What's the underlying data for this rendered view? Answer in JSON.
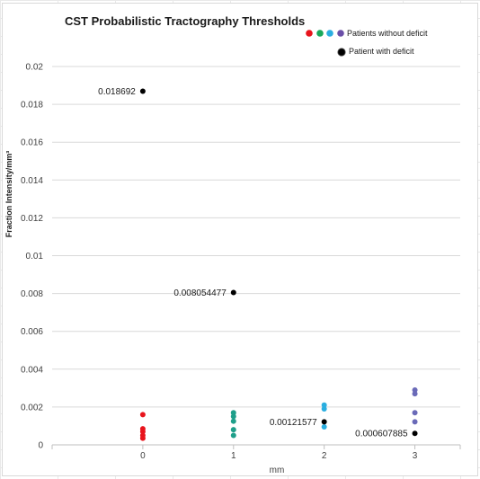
{
  "chart_data": {
    "type": "scatter",
    "title": "CST Probabilistic Tractography Thresholds",
    "xlabel": "mm",
    "ylabel": "Fraction Intensity/mm³",
    "xlim": [
      -1,
      3.5
    ],
    "ylim": [
      0,
      0.02
    ],
    "xticks": [
      "0",
      "1",
      "2",
      "3"
    ],
    "yticks": [
      "0",
      "0.002",
      "0.004",
      "0.006",
      "0.008",
      "0.01",
      "0.012",
      "0.014",
      "0.016",
      "0.018",
      "0.02"
    ],
    "grid": "horizontal",
    "legend_position": "top-right",
    "legend": [
      {
        "label": "Patients without deficit",
        "colors": [
          "#e8141c",
          "#18a85a",
          "#2aaee0",
          "#6a4fa8"
        ]
      },
      {
        "label": "Patient with deficit",
        "colors": [
          "#000000"
        ]
      }
    ],
    "series": [
      {
        "color": "#e8141c",
        "points": [
          [
            0,
            0.0016
          ],
          [
            0,
            0.00085
          ],
          [
            0,
            0.0007
          ],
          [
            0,
            0.0005
          ],
          [
            0,
            0.00035
          ]
        ]
      },
      {
        "color": "#1f9f8a",
        "points": [
          [
            1,
            0.0017
          ],
          [
            1,
            0.0015
          ],
          [
            1,
            0.00125
          ],
          [
            1,
            0.0008
          ],
          [
            1,
            0.0005
          ]
        ]
      },
      {
        "color": "#2aaee0",
        "points": [
          [
            2,
            0.0021
          ],
          [
            2,
            0.0019
          ],
          [
            2,
            0.00095
          ]
        ]
      },
      {
        "color": "#6a6ab8",
        "points": [
          [
            3,
            0.0029
          ],
          [
            3,
            0.0027
          ],
          [
            3,
            0.0017
          ],
          [
            3,
            0.00122
          ]
        ]
      },
      {
        "color": "#000000",
        "points": [
          [
            0,
            0.018692
          ],
          [
            1,
            0.008054477
          ],
          [
            2,
            0.00121577
          ],
          [
            3,
            0.000607885
          ]
        ],
        "labels": [
          "0.018692",
          "0.008054477",
          "0.00121577",
          "0.000607885"
        ]
      }
    ]
  }
}
